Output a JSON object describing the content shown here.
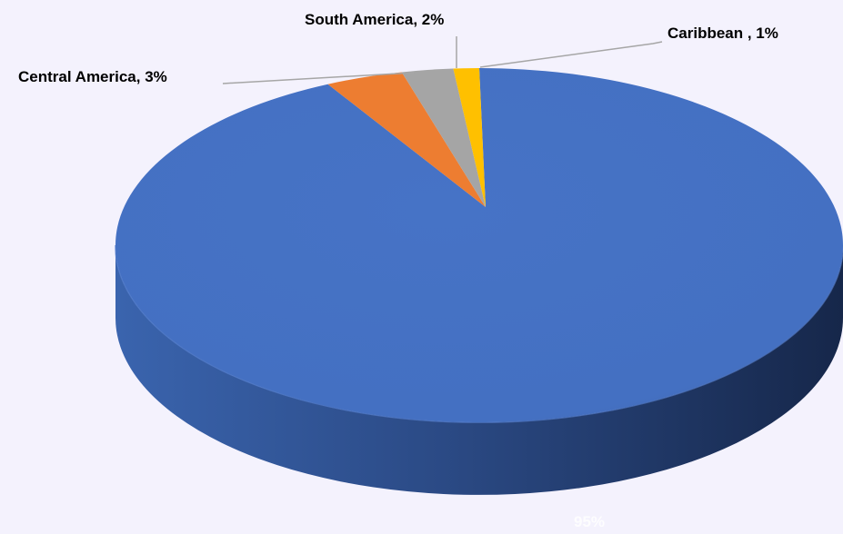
{
  "chart_data": {
    "type": "pie",
    "style": "3d",
    "title": "",
    "categories": [
      "Central America",
      "South America",
      "Caribbean",
      ""
    ],
    "values": [
      3,
      2,
      1,
      95
    ],
    "labels": [
      "Central America, 3%",
      "South America, 2%",
      "Caribbean , 1%",
      "95%"
    ],
    "colors": [
      "#ed7d31",
      "#a5a5a5",
      "#ffc000",
      "#4472c4"
    ],
    "legend": "none"
  },
  "colors": {
    "background": "#f4f2fd",
    "leader_line": "#a6a6a6",
    "inner_label": "#ffffff"
  }
}
